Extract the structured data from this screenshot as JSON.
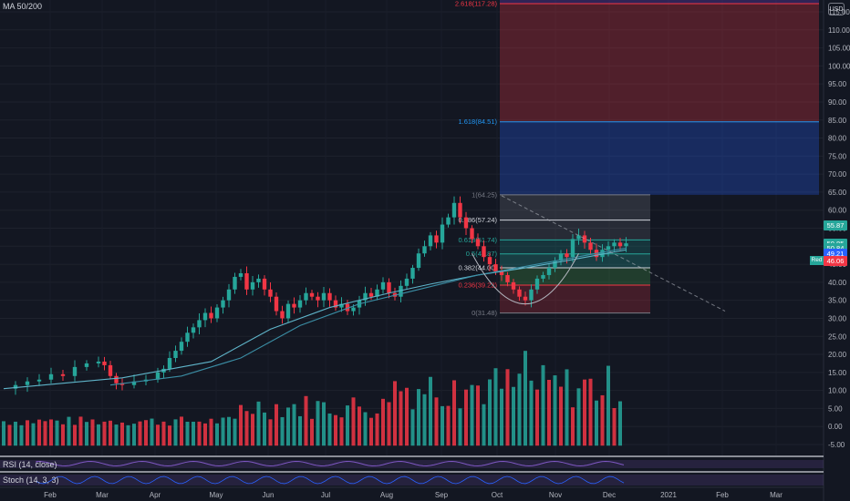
{
  "header": {
    "indicator_label": "MA 50/200",
    "currency": "USD"
  },
  "price_badges": [
    {
      "value": "55.87",
      "color": "#26a69a",
      "y": 55.87
    },
    {
      "value": "50.85",
      "color": "#26a69a",
      "y": 50.85
    },
    {
      "value": "50.84",
      "color": "#26a69a",
      "y": 49.5
    },
    {
      "value": "49.21",
      "color": "#2962ff",
      "y": 48.0
    },
    {
      "value": "46.06",
      "color": "#f23645",
      "y": 46.06
    }
  ],
  "trade_badge": "Red",
  "indicators": {
    "rsi_label": "RSI (14, close)",
    "stoch_label": "Stoch (14, 3, 3)"
  },
  "chart_data": {
    "type": "candlestick",
    "title": "",
    "x_months": [
      "Feb",
      "Mar",
      "Apr",
      "May",
      "Jun",
      "Jul",
      "Aug",
      "Sep",
      "Oct",
      "Nov",
      "Dec",
      "2021",
      "Feb",
      "Mar"
    ],
    "y_ticks": [
      "115.00",
      "110.00",
      "105.00",
      "100.00",
      "95.00",
      "90.00",
      "85.00",
      "80.00",
      "75.00",
      "70.00",
      "65.00",
      "60.00",
      "55.00",
      "50.00",
      "45.00",
      "40.00",
      "35.00",
      "30.00",
      "25.00",
      "20.00",
      "15.00",
      "10.00",
      "5.00",
      "0.00",
      "-5.00"
    ],
    "ylim": [
      -8,
      118
    ],
    "fibonacci": [
      {
        "label": "2.618(117.28)",
        "value": 117.28,
        "color": "#f23645"
      },
      {
        "label": "1.618(84.51)",
        "value": 84.51,
        "color": "#2196f3"
      },
      {
        "label": "1(64.25)",
        "value": 64.25,
        "color": "#787b86"
      },
      {
        "label": "0.786(57.24)",
        "value": 57.24,
        "color": "#d1d4dc"
      },
      {
        "label": "0.618(51.74)",
        "value": 51.74,
        "color": "#26a69a"
      },
      {
        "label": "0.5(47.87)",
        "value": 47.87,
        "color": "#26a69a"
      },
      {
        "label": "0.382(44.00)",
        "value": 44.0,
        "color": "#d1d4dc"
      },
      {
        "label": "0.236(39.22)",
        "value": 39.22,
        "color": "#f23645"
      },
      {
        "label": "0(31.48)",
        "value": 31.48,
        "color": "#787b86"
      }
    ],
    "price_path": [
      [
        0,
        10.5
      ],
      [
        2,
        11.5
      ],
      [
        4,
        12.5
      ],
      [
        6,
        13
      ],
      [
        8,
        14.5
      ],
      [
        10,
        14
      ],
      [
        12,
        16.5
      ],
      [
        14,
        17.5
      ],
      [
        16,
        18
      ],
      [
        17,
        17
      ],
      [
        18,
        14
      ],
      [
        19,
        12
      ],
      [
        20,
        11.5
      ],
      [
        22,
        12.5
      ],
      [
        24,
        13
      ],
      [
        26,
        15
      ],
      [
        27,
        16
      ],
      [
        28,
        19
      ],
      [
        29,
        21
      ],
      [
        30,
        23.5
      ],
      [
        31,
        26
      ],
      [
        32,
        27.5
      ],
      [
        33,
        29.5
      ],
      [
        34,
        31.5
      ],
      [
        35,
        30
      ],
      [
        36,
        33
      ],
      [
        37,
        35
      ],
      [
        38,
        38
      ],
      [
        39,
        41.5
      ],
      [
        40,
        42.5
      ],
      [
        41,
        38
      ],
      [
        42,
        40
      ],
      [
        43,
        41
      ],
      [
        44,
        38
      ],
      [
        45,
        36
      ],
      [
        46,
        32
      ],
      [
        47,
        30
      ],
      [
        48,
        34
      ],
      [
        49,
        33
      ],
      [
        50,
        35
      ],
      [
        51,
        37
      ],
      [
        52,
        36
      ],
      [
        53,
        35
      ],
      [
        54,
        37
      ],
      [
        55,
        35
      ],
      [
        56,
        33
      ],
      [
        57,
        34
      ],
      [
        58,
        32
      ],
      [
        59,
        33
      ],
      [
        60,
        35
      ],
      [
        61,
        37
      ],
      [
        62,
        36
      ],
      [
        63,
        38
      ],
      [
        64,
        40
      ],
      [
        65,
        37
      ],
      [
        66,
        36
      ],
      [
        67,
        39
      ],
      [
        68,
        41
      ],
      [
        69,
        44
      ],
      [
        70,
        48
      ],
      [
        71,
        50
      ],
      [
        72,
        53
      ],
      [
        73,
        51
      ],
      [
        74,
        56
      ],
      [
        75,
        58
      ],
      [
        76,
        62
      ],
      [
        77,
        58
      ],
      [
        78,
        55
      ],
      [
        79,
        52
      ],
      [
        80,
        50
      ],
      [
        81,
        47
      ],
      [
        82,
        45
      ],
      [
        83,
        43
      ],
      [
        84,
        42
      ],
      [
        85,
        40
      ],
      [
        86,
        38
      ],
      [
        87,
        36
      ],
      [
        88,
        35
      ],
      [
        89,
        38
      ],
      [
        90,
        41
      ],
      [
        91,
        42
      ],
      [
        92,
        44
      ],
      [
        93,
        46
      ],
      [
        94,
        48
      ],
      [
        95,
        47
      ],
      [
        96,
        52
      ],
      [
        97,
        53
      ],
      [
        98,
        51
      ],
      [
        99,
        49
      ],
      [
        100,
        47
      ],
      [
        101,
        49
      ],
      [
        102,
        50
      ],
      [
        103,
        51
      ],
      [
        104,
        50
      ],
      [
        105,
        50.8
      ]
    ],
    "ma50": [
      [
        0,
        10.5
      ],
      [
        20,
        13.5
      ],
      [
        35,
        18
      ],
      [
        45,
        27
      ],
      [
        55,
        33
      ],
      [
        65,
        37
      ],
      [
        72,
        39.5
      ],
      [
        80,
        42
      ],
      [
        88,
        44
      ],
      [
        95,
        46
      ],
      [
        105,
        49
      ]
    ],
    "ma200": [
      [
        18,
        11.5
      ],
      [
        30,
        14
      ],
      [
        40,
        19
      ],
      [
        50,
        28
      ],
      [
        60,
        34
      ],
      [
        70,
        38
      ],
      [
        80,
        42
      ],
      [
        90,
        45
      ],
      [
        100,
        48
      ],
      [
        105,
        49.5
      ]
    ],
    "volume_ylim": [
      -8,
      26
    ]
  }
}
